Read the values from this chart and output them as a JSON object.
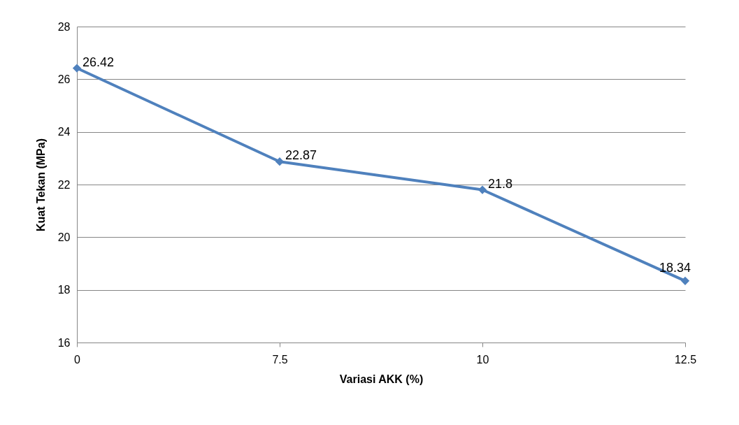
{
  "chart_data": {
    "type": "line",
    "xlabel": "Variasi AKK (%)",
    "ylabel": "Kuat Tekan (MPa)",
    "categories": [
      "0",
      "7.5",
      "10",
      "12.5"
    ],
    "series": [
      {
        "color": "#4f81bd",
        "values": [
          26.42,
          22.87,
          21.8,
          18.34
        ]
      }
    ],
    "ylim": [
      16,
      28
    ],
    "yticks": [
      16,
      18,
      20,
      22,
      24,
      26,
      28
    ],
    "grid": "y",
    "legend": false,
    "marker": "diamond",
    "line_style": "solid",
    "data_labels": true
  }
}
